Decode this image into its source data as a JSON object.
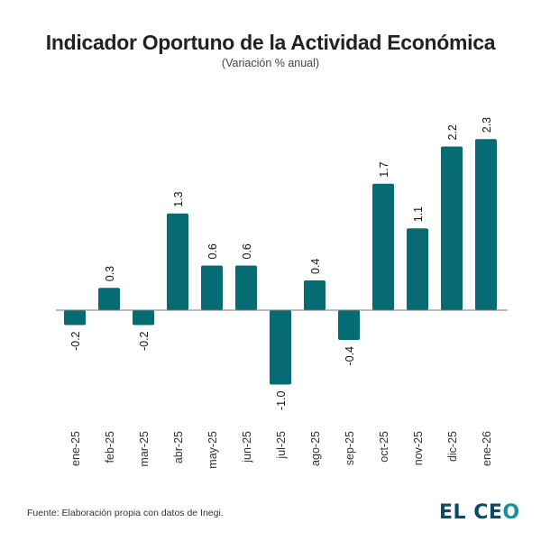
{
  "chart_data": {
    "type": "bar",
    "title": "Indicador Oportuno de la Actividad Económica",
    "subtitle": "(Variación % anual)",
    "xlabel": "",
    "ylabel": "",
    "categories": [
      "ene-25",
      "feb-25",
      "mar-25",
      "abr-25",
      "may-25",
      "jun-25",
      "jul-25",
      "ago-25",
      "sep-25",
      "oct-25",
      "nov-25",
      "dic-25",
      "ene-26"
    ],
    "values": [
      -0.2,
      0.3,
      -0.2,
      1.3,
      0.6,
      0.6,
      -1.0,
      0.4,
      -0.4,
      1.7,
      1.1,
      2.2,
      2.3
    ],
    "labels": [
      "-0.2",
      "0.3",
      "-0.2",
      "1.3",
      "0.6",
      "0.6",
      "-1.0",
      "0.4",
      "-0.4",
      "1.7",
      "1.1",
      "2.2",
      "2.3"
    ],
    "ylim": [
      -1.2,
      2.3
    ],
    "grid": false,
    "bar_color": "#076b73"
  },
  "footer": {
    "source": "Fuente: Elaboración propia con datos de Inegi.",
    "logo_main": "EL CE",
    "logo_o": "O"
  }
}
